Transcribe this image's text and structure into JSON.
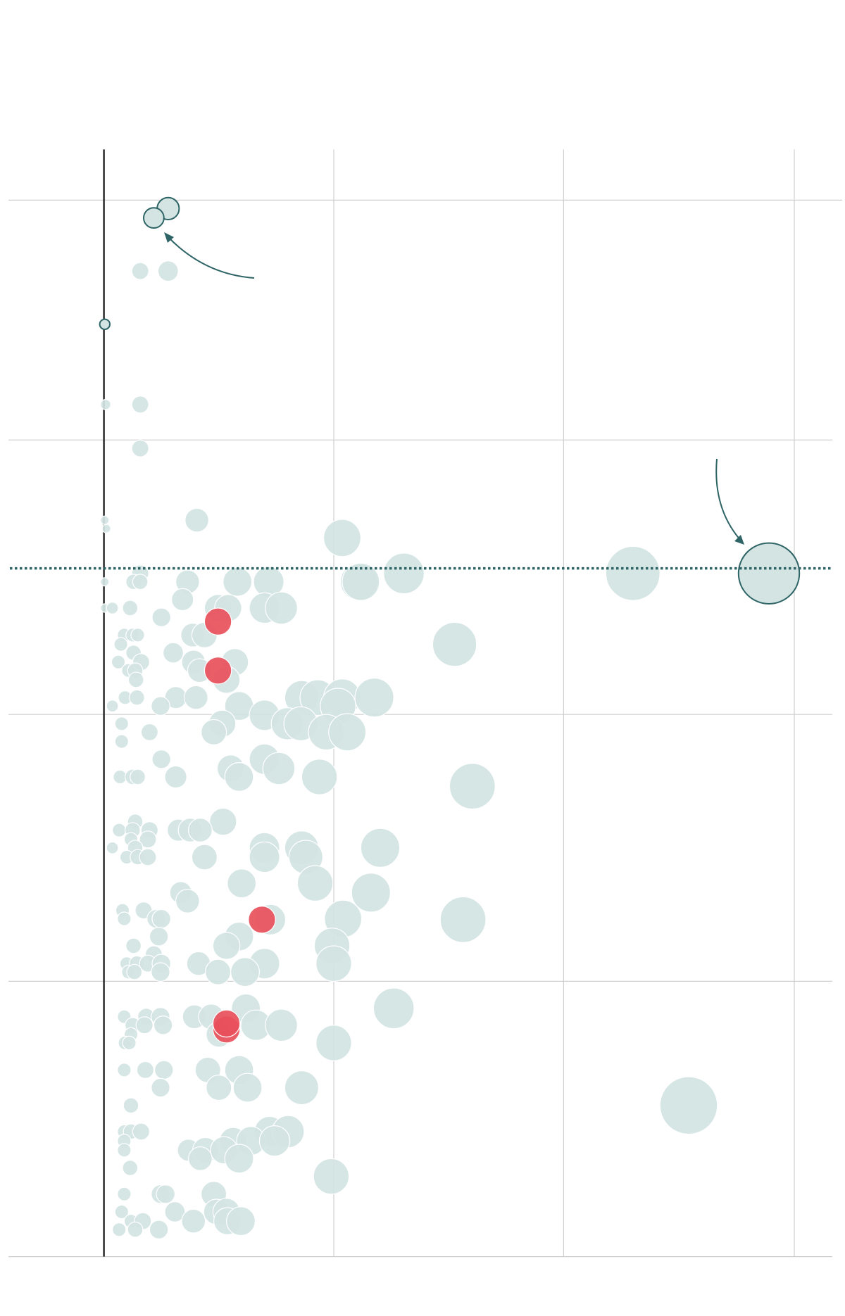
{
  "chart_data": {
    "type": "scatter",
    "grid": true,
    "xlim": [
      -1.1,
      8.62
    ],
    "ylim": [
      0,
      13.11
    ],
    "xticks": [
      0,
      2.72,
      5.44,
      8.17
    ],
    "yticks": [
      0,
      3.26,
      6.42,
      9.67,
      12.51
    ],
    "reference_line": 8.15,
    "series": [
      {
        "color": "#d3e4e3",
        "x": [
          0.43,
          0.76,
          0.02,
          0.43,
          0.43,
          0.01,
          0.03,
          1.1,
          2.82,
          0.43,
          0.01,
          0.35,
          0.43,
          0.99,
          1.58,
          1.95,
          3.02,
          3.04,
          3.55,
          6.26,
          0.01,
          0.1,
          0.31,
          0.68,
          0.93,
          1.35,
          1.47,
          1.9,
          2.1,
          0.24,
          0.34,
          0.4,
          1.05,
          1.19,
          0.2,
          0.35,
          0.82,
          0.17,
          0.44,
          1.06,
          1.55,
          0.29,
          0.37,
          1.13,
          1.45,
          0.38,
          4.15,
          0.25,
          0.39,
          0.85,
          1.09,
          0.1,
          0.67,
          1.6,
          2.34,
          2.53,
          2.82,
          3.2,
          2.77,
          1.9,
          2.17,
          2.33,
          2.63,
          2.88,
          1.4,
          1.3,
          0.21,
          0.54,
          0.21,
          0.68,
          1.9,
          0.19,
          0.34,
          0.4,
          0.85,
          1.5,
          1.6,
          2.07,
          2.55,
          4.36,
          1.41,
          0.37,
          0.18,
          0.34,
          0.54,
          0.88,
          1.02,
          1.14,
          0.32,
          0.52,
          0.1,
          0.37,
          0.27,
          0.4,
          0.52,
          1.19,
          1.9,
          1.9,
          2.34,
          2.39,
          3.27,
          1.63,
          2.5,
          3.16,
          0.91,
          0.99,
          0.22,
          0.47,
          0.24,
          0.62,
          0.68,
          1.97,
          2.83,
          4.25,
          0.65,
          1.6,
          1.45,
          2.7,
          0.35,
          0.59,
          0.27,
          0.39,
          0.52,
          0.68,
          1.12,
          1.9,
          2.72,
          0.29,
          0.36,
          0.67,
          1.35,
          1.67,
          3.43,
          1.68,
          0.24,
          0.5,
          0.67,
          1.07,
          1.27,
          0.34,
          0.48,
          0.7,
          1.8,
          2.1,
          0.32,
          1.36,
          0.25,
          0.3,
          2.72,
          0.24,
          0.49,
          0.71,
          1.23,
          1.6,
          0.67,
          1.36,
          1.7,
          2.34,
          6.92,
          0.32,
          0.24,
          0.32,
          0.44,
          1.96,
          2.18,
          0.24,
          1.53,
          1.74,
          2.02,
          0.24,
          1.0,
          1.2,
          1.42,
          1.14,
          1.6,
          0.31,
          2.69,
          0.24,
          0.67,
          0.73,
          1.3,
          0.21,
          0.84,
          1.33,
          1.45,
          0.32,
          0.46,
          1.06,
          1.46,
          1.62,
          0.18,
          0.37,
          0.65
        ],
        "values": [
          11.67,
          11.67,
          10.09,
          10.09,
          9.57,
          8.72,
          8.62,
          8.72,
          8.51,
          8.09,
          7.99,
          7.99,
          7.99,
          7.99,
          7.99,
          7.99,
          7.99,
          7.99,
          8.09,
          8.09,
          7.68,
          7.68,
          7.68,
          7.57,
          7.78,
          7.68,
          7.68,
          7.68,
          7.68,
          7.36,
          7.36,
          7.36,
          7.36,
          7.36,
          7.25,
          7.15,
          7.15,
          7.04,
          7.04,
          7.04,
          7.04,
          6.94,
          6.94,
          6.94,
          6.83,
          6.83,
          7.25,
          6.62,
          6.62,
          6.62,
          6.62,
          6.52,
          6.52,
          6.52,
          6.62,
          6.62,
          6.62,
          6.62,
          6.52,
          6.41,
          6.31,
          6.31,
          6.21,
          6.21,
          6.31,
          6.21,
          6.31,
          6.21,
          6.1,
          5.89,
          5.89,
          5.68,
          5.68,
          5.68,
          5.68,
          5.78,
          5.68,
          5.78,
          5.68,
          5.57,
          5.15,
          5.15,
          5.05,
          5.05,
          5.05,
          5.05,
          5.05,
          5.05,
          4.94,
          4.94,
          4.84,
          4.84,
          4.73,
          4.73,
          4.73,
          4.73,
          4.84,
          4.73,
          4.84,
          4.73,
          4.84,
          4.42,
          4.42,
          4.31,
          4.31,
          4.21,
          4.1,
          4.1,
          4.0,
          4.0,
          4.0,
          3.99,
          4.0,
          3.99,
          3.79,
          3.79,
          3.68,
          3.68,
          3.68,
          3.58,
          3.47,
          3.47,
          3.47,
          3.47,
          3.47,
          3.47,
          3.47,
          3.37,
          3.37,
          3.37,
          3.37,
          3.37,
          2.94,
          2.94,
          2.84,
          2.84,
          2.84,
          2.84,
          2.84,
          2.74,
          2.74,
          2.74,
          2.74,
          2.74,
          2.63,
          2.63,
          2.53,
          2.53,
          2.53,
          2.21,
          2.21,
          2.21,
          2.21,
          2.21,
          2.0,
          2.0,
          2.0,
          2.0,
          1.79,
          1.79,
          1.48,
          1.48,
          1.48,
          1.48,
          1.48,
          1.37,
          1.37,
          1.37,
          1.37,
          1.26,
          1.26,
          1.26,
          1.26,
          1.16,
          1.16,
          1.05,
          0.95,
          0.74,
          0.74,
          0.74,
          0.74,
          0.53,
          0.53,
          0.53,
          0.53,
          0.42,
          0.42,
          0.42,
          0.42,
          0.42,
          0.32,
          0.32,
          0.32
        ],
        "sizes": [
          0.1,
          0.12,
          0.06,
          0.1,
          0.1,
          0.05,
          0.05,
          0.14,
          0.22,
          0.1,
          0.05,
          0.09,
          0.09,
          0.14,
          0.17,
          0.18,
          0.22,
          0.22,
          0.24,
          0.32,
          0.05,
          0.07,
          0.09,
          0.11,
          0.13,
          0.16,
          0.16,
          0.18,
          0.19,
          0.08,
          0.08,
          0.08,
          0.14,
          0.15,
          0.08,
          0.09,
          0.12,
          0.08,
          0.1,
          0.14,
          0.16,
          0.08,
          0.09,
          0.14,
          0.16,
          0.09,
          0.26,
          0.08,
          0.09,
          0.13,
          0.14,
          0.07,
          0.11,
          0.17,
          0.2,
          0.21,
          0.22,
          0.23,
          0.21,
          0.18,
          0.19,
          0.2,
          0.21,
          0.22,
          0.16,
          0.15,
          0.08,
          0.1,
          0.08,
          0.11,
          0.18,
          0.08,
          0.09,
          0.09,
          0.13,
          0.16,
          0.17,
          0.19,
          0.21,
          0.27,
          0.16,
          0.09,
          0.08,
          0.09,
          0.1,
          0.13,
          0.14,
          0.14,
          0.08,
          0.1,
          0.07,
          0.09,
          0.08,
          0.09,
          0.1,
          0.15,
          0.18,
          0.18,
          0.2,
          0.2,
          0.23,
          0.17,
          0.21,
          0.23,
          0.13,
          0.14,
          0.08,
          0.1,
          0.08,
          0.11,
          0.11,
          0.18,
          0.22,
          0.27,
          0.11,
          0.17,
          0.16,
          0.21,
          0.09,
          0.1,
          0.08,
          0.09,
          0.1,
          0.11,
          0.14,
          0.18,
          0.21,
          0.08,
          0.09,
          0.11,
          0.15,
          0.17,
          0.24,
          0.17,
          0.08,
          0.1,
          0.11,
          0.14,
          0.15,
          0.09,
          0.1,
          0.11,
          0.18,
          0.19,
          0.08,
          0.15,
          0.08,
          0.08,
          0.21,
          0.08,
          0.1,
          0.11,
          0.15,
          0.17,
          0.11,
          0.15,
          0.17,
          0.2,
          0.34,
          0.09,
          0.08,
          0.09,
          0.1,
          0.18,
          0.19,
          0.08,
          0.16,
          0.17,
          0.18,
          0.08,
          0.13,
          0.15,
          0.16,
          0.14,
          0.17,
          0.09,
          0.21,
          0.08,
          0.11,
          0.11,
          0.15,
          0.08,
          0.12,
          0.15,
          0.16,
          0.08,
          0.1,
          0.14,
          0.16,
          0.17,
          0.08,
          0.09,
          0.11
        ]
      },
      {
        "color": "#d3e4e3",
        "stroke": "#2e6466",
        "x": [
          0.76,
          0.59,
          0.01,
          7.87
        ],
        "values": [
          12.41,
          12.3,
          11.04,
          8.09
        ],
        "sizes": [
          0.13,
          0.12,
          0.06,
          0.36
        ]
      },
      {
        "color": "#e8505b",
        "x": [
          1.35,
          1.35,
          1.87,
          1.45,
          1.45
        ],
        "values": [
          7.52,
          6.94,
          3.99,
          2.69,
          2.76
        ],
        "sizes": [
          0.16,
          0.16,
          0.16,
          0.16,
          0.16
        ]
      }
    ]
  }
}
